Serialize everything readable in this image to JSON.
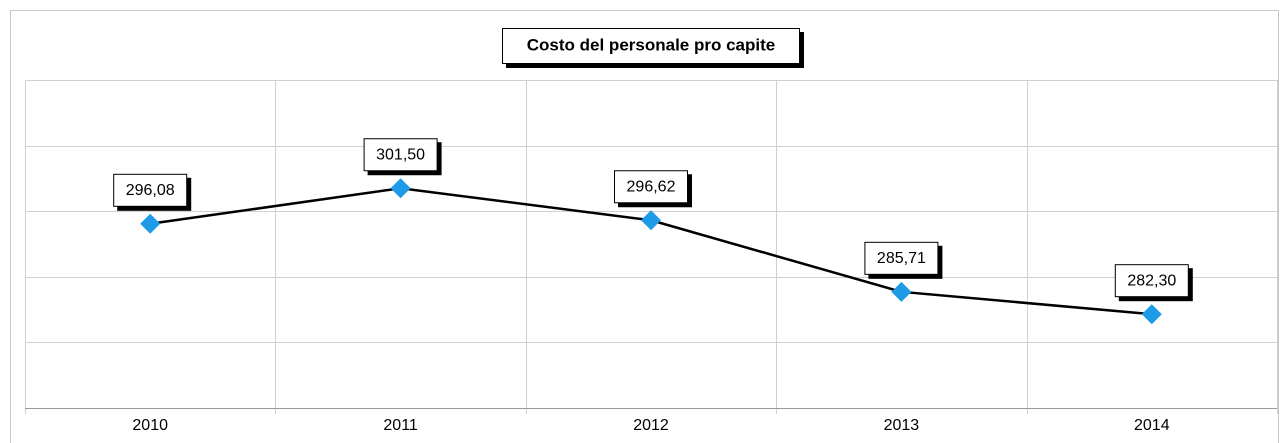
{
  "chart_data": {
    "type": "line",
    "title": "Costo del personale pro capite",
    "categories": [
      "2010",
      "2011",
      "2012",
      "2013",
      "2014"
    ],
    "series": [
      {
        "name": "Costo del personale pro capite",
        "color": "#000000",
        "marker_color": "#1e9be6",
        "values": [
          296.08,
          301.5,
          296.62,
          285.71,
          282.3
        ],
        "value_labels": [
          "296,08",
          "301,50",
          "296,62",
          "285,71",
          "282,30"
        ]
      }
    ],
    "ylim": [
      268,
      318
    ],
    "yticks": [
      278,
      288,
      298,
      308
    ],
    "grid": true
  }
}
